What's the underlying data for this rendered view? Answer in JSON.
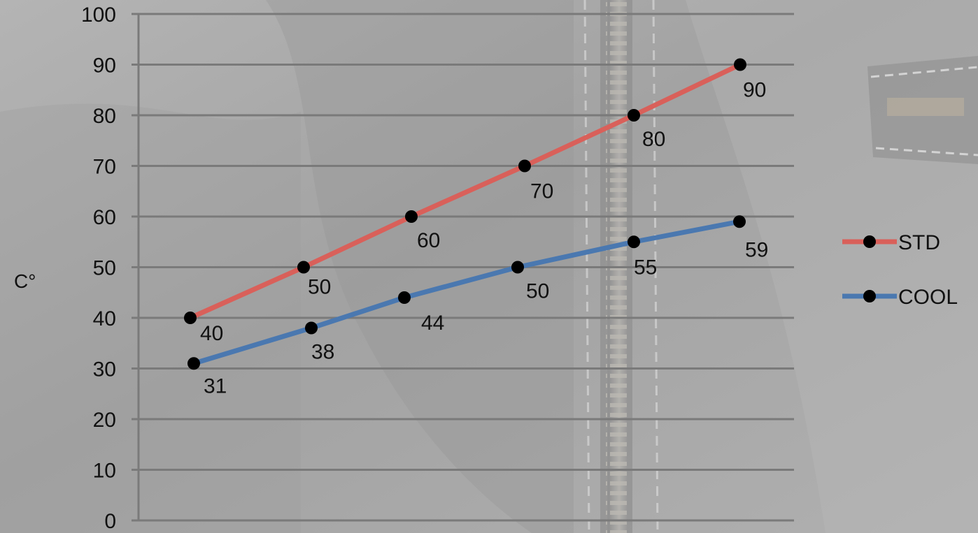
{
  "chart_data": {
    "type": "line",
    "title": "",
    "ylabel": "C°",
    "xlabel": "",
    "ylim": [
      0,
      100
    ],
    "yticks": [
      0,
      10,
      20,
      30,
      40,
      50,
      60,
      70,
      80,
      90,
      100
    ],
    "grid": true,
    "legend_position": "right",
    "series": [
      {
        "name": "STD",
        "color": "#d9605a",
        "values": [
          40,
          50,
          60,
          70,
          80,
          90
        ]
      },
      {
        "name": "COOL",
        "color": "#4a78b0",
        "values": [
          31,
          38,
          44,
          50,
          55,
          59
        ]
      }
    ]
  }
}
